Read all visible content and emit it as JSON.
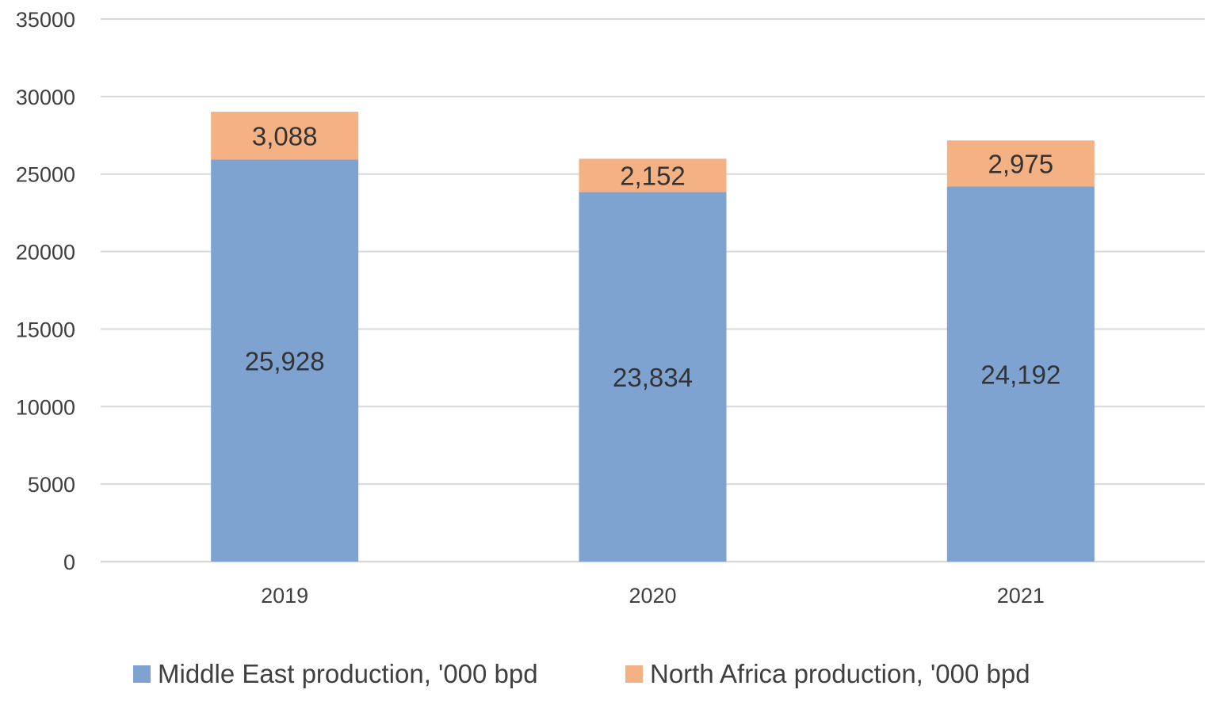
{
  "chart_data": {
    "type": "bar",
    "stacked": true,
    "title": "",
    "xlabel": "",
    "ylabel": "",
    "categories": [
      "2019",
      "2020",
      "2021"
    ],
    "ylim": [
      0,
      35000
    ],
    "yticks": [
      0,
      5000,
      10000,
      15000,
      20000,
      25000,
      30000,
      35000
    ],
    "grid": true,
    "legend_position": "bottom",
    "series": [
      {
        "name": "Middle East production, '000 bpd",
        "color": "#7fa3d1",
        "values": [
          25928,
          23834,
          24192
        ],
        "labels": [
          "25,928",
          "23,834",
          "24,192"
        ]
      },
      {
        "name": "North Africa production, '000 bpd",
        "color": "#f4b183",
        "values": [
          3088,
          2152,
          2975
        ],
        "labels": [
          "3,088",
          "2,152",
          "2,975"
        ]
      }
    ]
  }
}
